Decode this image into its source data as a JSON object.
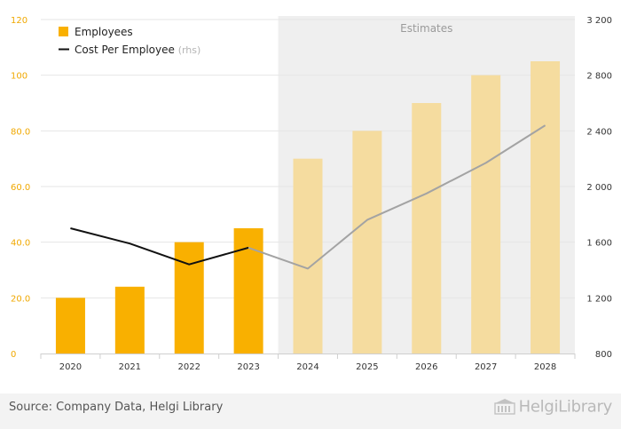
{
  "chart_data": {
    "type": "bar",
    "categories": [
      "2020",
      "2021",
      "2022",
      "2023",
      "2024",
      "2025",
      "2026",
      "2027",
      "2028"
    ],
    "series": [
      {
        "name": "Employees",
        "axis": "left",
        "kind": "bar",
        "values": [
          20,
          24,
          40,
          45,
          70,
          80,
          90,
          100,
          105
        ]
      },
      {
        "name": "Cost Per Employee",
        "axis_note": "(rhs)",
        "axis": "right",
        "kind": "line",
        "values": [
          1700,
          1590,
          1440,
          1560,
          1410,
          1760,
          1950,
          2170,
          2440
        ]
      }
    ],
    "estimates_from": "2024",
    "estimates_label": "Estimates",
    "y_left": {
      "min": 0,
      "max": 120,
      "ticks": [
        "0",
        "20.0",
        "40.0",
        "60.0",
        "80.0",
        "100",
        "120"
      ]
    },
    "y_right": {
      "min": 800,
      "max": 3200,
      "ticks": [
        "800",
        "1 200",
        "1 600",
        "2 000",
        "2 400",
        "2 800",
        "3 200"
      ]
    },
    "grid": true,
    "legend_position": "top-left"
  },
  "colors": {
    "bar_actual": "#f9b000",
    "bar_estimate": "#f5dc9f",
    "line_actual": "#111111",
    "line_estimate": "#a3a3a3",
    "estimates_bg": "#efefef",
    "left_axis_text": "#f0a800",
    "grid": "#e6e6e6"
  },
  "footer": {
    "source": "Source: Company Data, Helgi Library",
    "brand": "HelgiLibrary"
  }
}
